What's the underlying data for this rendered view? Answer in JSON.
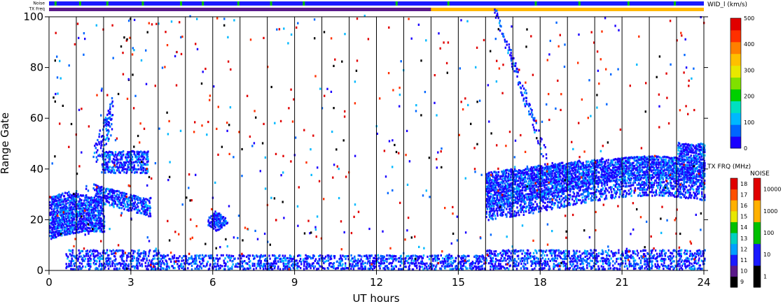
{
  "chart_data": {
    "type": "heatmap",
    "xlabel": "UT hours",
    "ylabel": "Range Gate",
    "xlim": [
      0,
      24
    ],
    "ylim": [
      0,
      100
    ],
    "x_ticks": [
      0,
      3,
      6,
      9,
      12,
      15,
      18,
      21,
      24
    ],
    "y_ticks": [
      0,
      20,
      40,
      60,
      80,
      100
    ],
    "hour_gridlines": true,
    "strips": {
      "noise_label": "Noise",
      "txfreq_label": "TX Freq",
      "noise_green_hours": [
        0.2,
        1.1,
        2.1,
        3.4,
        4.8,
        5.6,
        6.9,
        8.1,
        9.3,
        12.7,
        14.6,
        17.8,
        19.4,
        21.2,
        22.9
      ],
      "txfreq_switch_hour": 14.0,
      "txfreq_colors": [
        "#5a1a8a",
        "#ffb800"
      ]
    },
    "colorbar_width": {
      "label": "WID_l (km/s)",
      "ticks": [
        0,
        100,
        200,
        300,
        400,
        500
      ],
      "colors": [
        "#1a00ff",
        "#0066ff",
        "#00b8ff",
        "#00e0c0",
        "#00d000",
        "#80e000",
        "#e8e800",
        "#ffc000",
        "#ff8000",
        "#ff3000",
        "#e00000"
      ]
    },
    "colorbar_txfreq": {
      "label": "TX FRQ (MHz)",
      "ticks": [
        9,
        10,
        11,
        12,
        13,
        14,
        15,
        16,
        17,
        18
      ],
      "colors": [
        "#000000",
        "#5a1a8a",
        "#1a1aff",
        "#00a0ff",
        "#00d0c0",
        "#00c000",
        "#e8e800",
        "#ffb000",
        "#ff5000",
        "#e00000"
      ]
    },
    "colorbar_noise": {
      "label": "NOISE",
      "ticks": [
        "1",
        "10",
        "100",
        "1000",
        "10000"
      ],
      "colors": [
        "#000000",
        "#1a1aff",
        "#00c000",
        "#ffb000",
        "#e00000"
      ]
    },
    "echo_regions": [
      {
        "name": "early-band-low",
        "x": [
          0,
          2.0
        ],
        "y": [
          12,
          30
        ]
      },
      {
        "name": "early-band-high",
        "x": [
          1.6,
          3.7
        ],
        "y": [
          22,
          47
        ]
      },
      {
        "name": "early-rising-arc",
        "x": [
          1.5,
          2.3
        ],
        "y": [
          38,
          70
        ]
      },
      {
        "name": "blob-0600",
        "x": [
          5.8,
          6.5
        ],
        "y": [
          14,
          24
        ]
      },
      {
        "name": "ground-scatter-band",
        "x": [
          4.0,
          24.0
        ],
        "y": [
          0,
          7
        ]
      },
      {
        "name": "evening-arc",
        "x": [
          16.2,
          18.2
        ],
        "y": [
          40,
          95
        ]
      },
      {
        "name": "evening-band",
        "x": [
          16.0,
          24.0
        ],
        "y": [
          22,
          48
        ]
      }
    ]
  }
}
